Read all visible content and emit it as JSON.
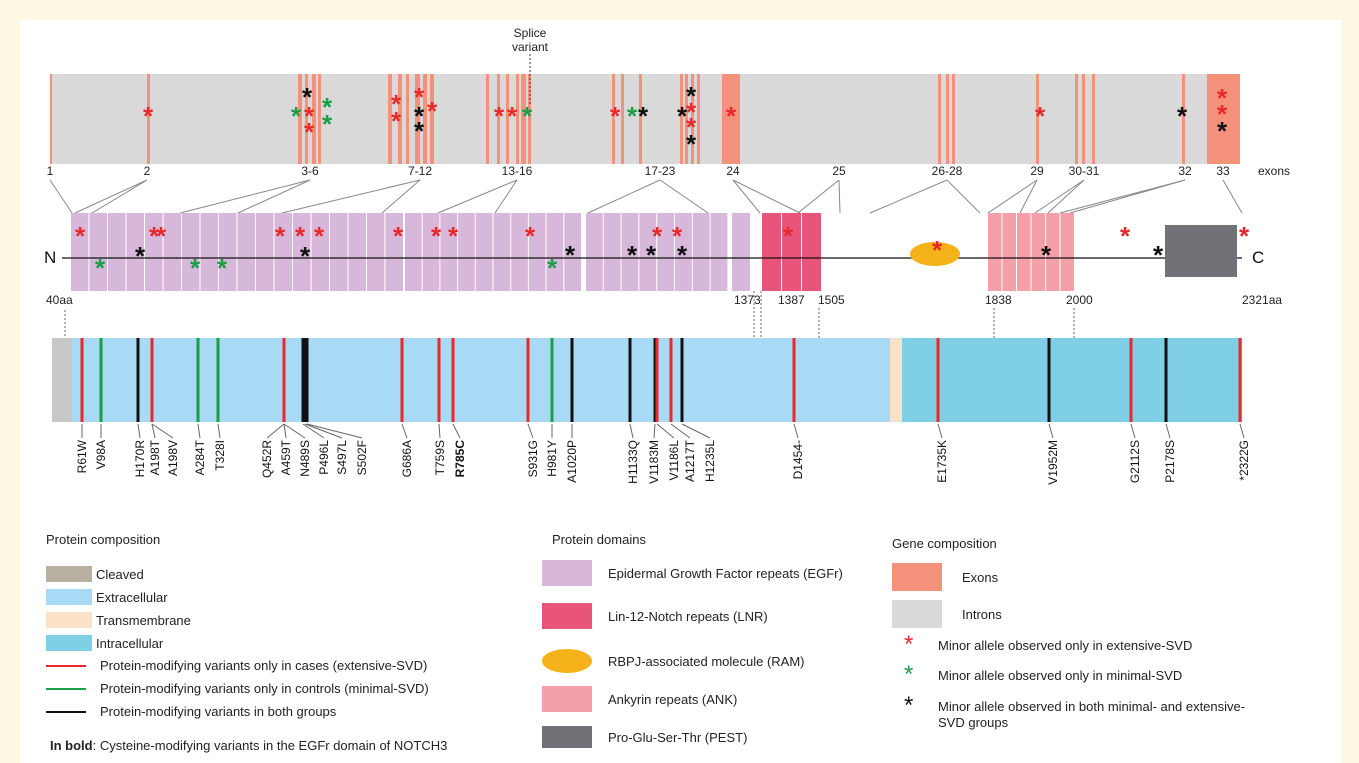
{
  "splice_label": [
    "Splice",
    "variant"
  ],
  "exon_labels": [
    "1",
    "2",
    "3-6",
    "7-12",
    "13-16",
    "17-23",
    "24",
    "25",
    "26-28",
    "29",
    "30-31",
    "32",
    "33"
  ],
  "exons_word": "exons",
  "protein": {
    "n_label": "N",
    "c_label": "C",
    "start_label": "40aa",
    "end_label": "2321aa",
    "positions": [
      "1373",
      "1387",
      "1505",
      "1838",
      "2000"
    ]
  },
  "variants": [
    {
      "name": "R61W",
      "group": "cases"
    },
    {
      "name": "V98A",
      "group": "controls"
    },
    {
      "name": "H170R",
      "group": "both"
    },
    {
      "name": "A198T",
      "group": "cases"
    },
    {
      "name": "A198V",
      "group": "cases"
    },
    {
      "name": "A284T",
      "group": "controls"
    },
    {
      "name": "T328I",
      "group": "controls"
    },
    {
      "name": "Q452R",
      "group": "cases"
    },
    {
      "name": "A459T",
      "group": "cases"
    },
    {
      "name": "N489S",
      "group": "cases"
    },
    {
      "name": "P496L",
      "group": "both"
    },
    {
      "name": "S497L",
      "group": "both"
    },
    {
      "name": "S502F",
      "group": "both"
    },
    {
      "name": "G686A",
      "group": "cases"
    },
    {
      "name": "T759S",
      "group": "cases"
    },
    {
      "name": "R785C",
      "group": "cases",
      "bold": true
    },
    {
      "name": "S931G",
      "group": "cases"
    },
    {
      "name": "H981Y",
      "group": "controls"
    },
    {
      "name": "A1020P",
      "group": "both"
    },
    {
      "name": "H1133Q",
      "group": "both"
    },
    {
      "name": "V1183M",
      "group": "both"
    },
    {
      "name": "V1186L",
      "group": "cases"
    },
    {
      "name": "A1217T",
      "group": "cases"
    },
    {
      "name": "H1235L",
      "group": "both"
    },
    {
      "name": "D1454-",
      "group": "cases"
    },
    {
      "name": "E1735K",
      "group": "cases"
    },
    {
      "name": "V1952M",
      "group": "both"
    },
    {
      "name": "G2112S",
      "group": "cases"
    },
    {
      "name": "P2178S",
      "group": "both"
    },
    {
      "name": "*2322G",
      "group": "cases"
    }
  ],
  "legend_protein_composition": {
    "title": "Protein composition",
    "items": [
      {
        "label": "Cleaved",
        "color": "#b8b0a0"
      },
      {
        "label": "Extracellular",
        "color": "#a8daf5"
      },
      {
        "label": "Transmembrane",
        "color": "#fbe1c8"
      },
      {
        "label": "Intracellular",
        "color": "#7fcfe6"
      }
    ],
    "lines": [
      {
        "label": "Protein-modifying variants only in cases (extensive-SVD)",
        "color": "#e8292c"
      },
      {
        "label": "Protein-modifying variants only in controls (minimal-SVD)",
        "color": "#1a9e46"
      },
      {
        "label": "Protein-modifying variants in both groups",
        "color": "#111111"
      }
    ],
    "note_bold": "In bold",
    "note_rest": ": Cysteine-modifying variants in the EGFr domain of NOTCH3"
  },
  "legend_domains": {
    "title": "Protein domains",
    "items": [
      {
        "label": "Epidermal Growth Factor repeats (EGFr)",
        "color": "#d8b8da"
      },
      {
        "label": "Lin-12-Notch repeats (LNR)",
        "color": "#e8547a"
      },
      {
        "label": "RBPJ-associated molecule (RAM)",
        "color": "#f5b21a",
        "shape": "ellipse"
      },
      {
        "label": "Ankyrin repeats (ANK)",
        "color": "#f4a0a8"
      },
      {
        "label": "Pro-Glu-Ser-Thr (PEST)",
        "color": "#717178"
      }
    ]
  },
  "legend_gene": {
    "title": "Gene composition",
    "items": [
      {
        "label": "Exons",
        "color": "#f4917a"
      },
      {
        "label": "Introns",
        "color": "#d9d9d9"
      }
    ],
    "stars": [
      {
        "label": "Minor allele observed only in extensive-SVD",
        "color": "#e8292c"
      },
      {
        "label": "Minor allele observed only in minimal-SVD",
        "color": "#1a9e46"
      },
      {
        "label": "Minor allele observed in both minimal- and extensive-",
        "label2": "SVD groups",
        "color": "#111111"
      }
    ]
  },
  "colors": {
    "exon": "#f4917a",
    "intron": "#d9d9d9",
    "egf": "#d8b8da",
    "lnr": "#e8547a",
    "ank": "#f4a0a8",
    "pest": "#717178",
    "ram": "#f5b21a",
    "cases": "#e8292c",
    "controls": "#1a9e46",
    "both": "#111111"
  }
}
